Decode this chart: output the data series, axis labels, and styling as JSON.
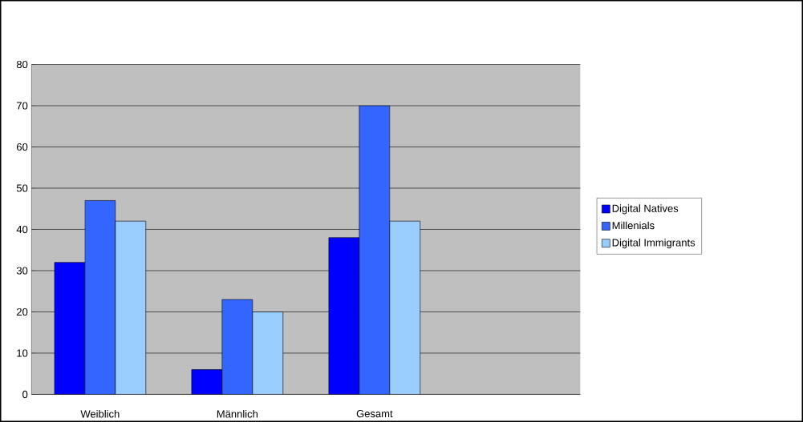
{
  "chart_data": {
    "type": "bar",
    "categories": [
      "Weiblich",
      "Männlich",
      "Gesamt",
      null
    ],
    "series": [
      {
        "name": "Digital Natives",
        "color": "#0000ff",
        "values": [
          32,
          6,
          38,
          null
        ]
      },
      {
        "name": "Millenials",
        "color": "#3366ff",
        "values": [
          47,
          23,
          70,
          null
        ]
      },
      {
        "name": "Digital Immigrants",
        "color": "#99ccff",
        "values": [
          42,
          20,
          42,
          null
        ]
      }
    ],
    "ylim": [
      0,
      80
    ],
    "yticks": [
      0,
      10,
      20,
      30,
      40,
      50,
      60,
      70,
      80
    ],
    "grid": "y",
    "legend": "right"
  }
}
